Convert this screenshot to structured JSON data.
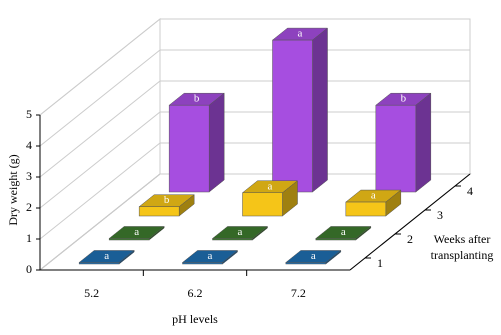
{
  "chart_data": {
    "type": "bar3d",
    "y_label": "Dry weight (g)",
    "x_label": "pH levels",
    "z_label_lines": [
      "Weeks after",
      "transplanting"
    ],
    "categories": [
      "5.2",
      "6.2",
      "7.2"
    ],
    "ylim": [
      0,
      5
    ],
    "yticks": [
      0,
      1,
      2,
      3,
      4,
      5
    ],
    "grid": true,
    "series": [
      {
        "name": "1",
        "color": "#1f6fb0",
        "values": [
          0.05,
          0.05,
          0.05
        ],
        "letters": [
          "a",
          "a",
          "a"
        ]
      },
      {
        "name": "2",
        "color": "#3d7a2e",
        "values": [
          0.05,
          0.05,
          0.05
        ],
        "letters": [
          "a",
          "a",
          "a"
        ]
      },
      {
        "name": "3",
        "color": "#f5c518",
        "values": [
          0.3,
          0.75,
          0.45
        ],
        "letters": [
          "b",
          "a",
          "a"
        ]
      },
      {
        "name": "4",
        "color": "#a64ee0",
        "values": [
          2.8,
          4.9,
          2.8
        ],
        "letters": [
          "b",
          "a",
          "b"
        ]
      }
    ]
  }
}
